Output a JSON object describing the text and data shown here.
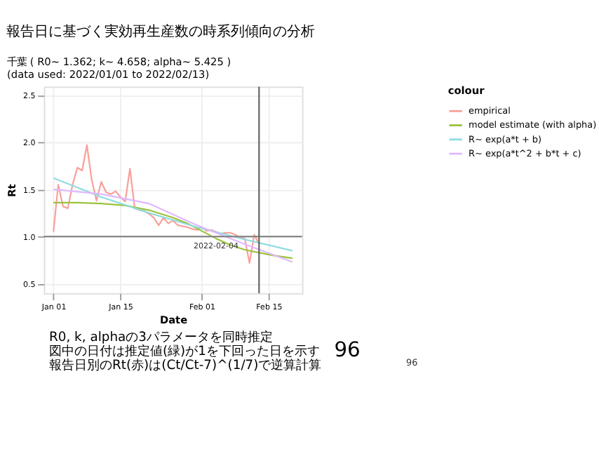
{
  "chart_data": {
    "type": "line",
    "title": "報告日に基づく実効再生産数の時系列傾向の分析",
    "subtitle": "千葉 ( R0~ 1.362; k~ 4.658; alpha~ 5.425 )\n(data used: 2022/01/01 to 2022/02/13)",
    "xlabel": "Date",
    "ylabel": "Rt",
    "legend_title": "colour",
    "legend": "right",
    "grid": true,
    "series": [
      {
        "name": "empirical",
        "color": "#f9a09a",
        "x": [
          "2022-01-01",
          "2022-01-02",
          "2022-01-03",
          "2022-01-04",
          "2022-01-05",
          "2022-01-06",
          "2022-01-07",
          "2022-01-08",
          "2022-01-09",
          "2022-01-10",
          "2022-01-11",
          "2022-01-12",
          "2022-01-13",
          "2022-01-14",
          "2022-01-15",
          "2022-01-16",
          "2022-01-17",
          "2022-01-18",
          "2022-01-19",
          "2022-01-20",
          "2022-01-21",
          "2022-01-22",
          "2022-01-23",
          "2022-01-24",
          "2022-01-25",
          "2022-01-26",
          "2022-01-27",
          "2022-01-28",
          "2022-01-29",
          "2022-01-30",
          "2022-01-31",
          "2022-02-01",
          "2022-02-02",
          "2022-02-03",
          "2022-02-04",
          "2022-02-05",
          "2022-02-06",
          "2022-02-07",
          "2022-02-08",
          "2022-02-09",
          "2022-02-10",
          "2022-02-11",
          "2022-02-12",
          "2022-02-13"
        ],
        "values": [
          1.05,
          1.55,
          1.32,
          1.3,
          1.55,
          1.73,
          1.7,
          1.97,
          1.6,
          1.38,
          1.58,
          1.47,
          1.45,
          1.48,
          1.42,
          1.37,
          1.72,
          1.3,
          1.28,
          1.27,
          1.24,
          1.2,
          1.12,
          1.2,
          1.14,
          1.17,
          1.12,
          1.11,
          1.1,
          1.08,
          1.07,
          1.1,
          1.06,
          1.07,
          1.05,
          1.03,
          1.04,
          1.04,
          1.02,
          0.99,
          0.98,
          0.72,
          1.02,
          0.92
        ]
      },
      {
        "name": "model estimate (with alpha)",
        "color": "#9cc23d",
        "x": [
          "2022-01-01",
          "2022-01-06",
          "2022-01-11",
          "2022-01-16",
          "2022-01-21",
          "2022-01-26",
          "2022-01-29",
          "2022-02-01",
          "2022-02-04",
          "2022-02-07",
          "2022-02-10",
          "2022-02-13",
          "2022-02-16",
          "2022-02-20"
        ],
        "values": [
          1.36,
          1.36,
          1.35,
          1.33,
          1.28,
          1.2,
          1.14,
          1.06,
          0.98,
          0.91,
          0.86,
          0.83,
          0.8,
          0.77
        ]
      },
      {
        "name": "R~ exp(a*t + b)",
        "color": "#8fdcdf",
        "x": [
          "2022-01-01",
          "2022-01-11",
          "2022-01-21",
          "2022-01-31",
          "2022-02-10",
          "2022-02-20"
        ],
        "values": [
          1.62,
          1.42,
          1.25,
          1.1,
          0.97,
          0.85
        ]
      },
      {
        "name": "R~ exp(a*t^2 + b*t + c)",
        "color": "#e0b8ff",
        "x": [
          "2022-01-01",
          "2022-01-11",
          "2022-01-21",
          "2022-01-31",
          "2022-02-10",
          "2022-02-20"
        ],
        "values": [
          1.5,
          1.45,
          1.35,
          1.12,
          0.92,
          0.73
        ]
      }
    ],
    "xlim": [
      "2021-12-30",
      "2022-02-22"
    ],
    "xticks": [
      {
        "value": "2022-01-01",
        "label": "Jan 01"
      },
      {
        "value": "2022-01-15",
        "label": "Jan 15"
      },
      {
        "value": "2022-02-01",
        "label": "Feb 01"
      },
      {
        "value": "2022-02-15",
        "label": "Feb 15"
      }
    ],
    "ylim": [
      0.4,
      2.59
    ],
    "yticks": [
      0.5,
      {
        "value": 1.0,
        "label": "1.0"
      },
      1.5,
      {
        "value": 2.0,
        "label": "2.0"
      },
      2.5
    ],
    "ref_lines": [
      {
        "axis": "y",
        "value": 1.0,
        "color": "#888888"
      },
      {
        "axis": "x",
        "value": "2022-02-13",
        "color": "#666666"
      }
    ],
    "annotations": [
      {
        "text": "2022-02-04",
        "x": "2022-02-04",
        "y": 0.9
      },
      "R0, k, alphaの3パラメータを同時推定",
      "図中の日付は推定値(緑)が1を下回った日を示す",
      "報告日別のRt(赤)は(Ct/Ct-7)^(1/7)で逆算計算",
      "96",
      "96"
    ]
  }
}
